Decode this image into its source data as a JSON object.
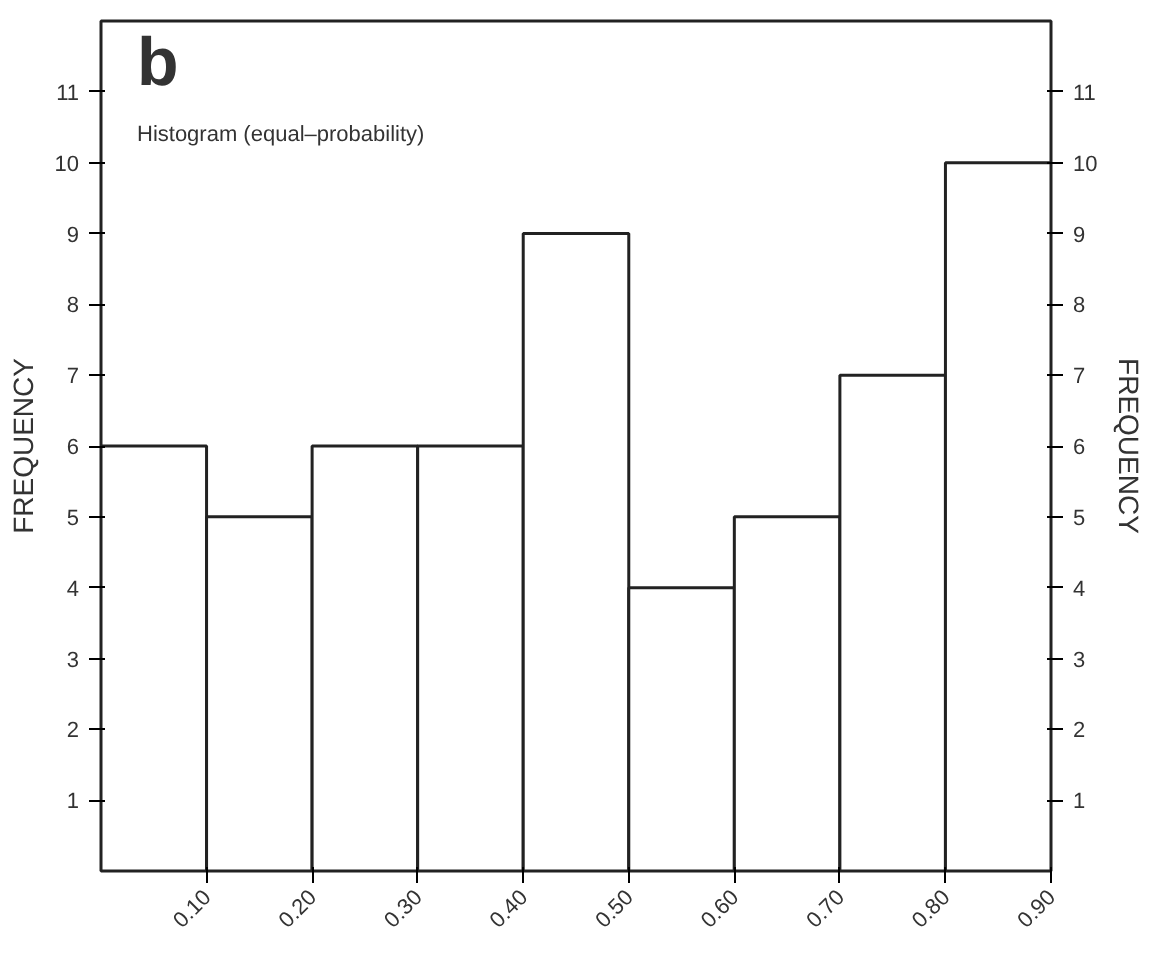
{
  "chart_data": {
    "type": "histogram",
    "title": "b",
    "subtitle": "Histogram (equal–probability)",
    "ylabel": "FREQUENCY",
    "y2label": "FREQUENCY",
    "bins": [
      0.0,
      0.1,
      0.2,
      0.3,
      0.4,
      0.5,
      0.6,
      0.7,
      0.8,
      0.9
    ],
    "values": [
      6,
      5,
      6,
      6,
      9,
      4,
      5,
      7,
      10
    ],
    "color": "#ffffff",
    "xlim": [
      0.0,
      0.9
    ],
    "xticks": [
      {
        "value": 0.1,
        "label": "0.10"
      },
      {
        "value": 0.2,
        "label": "0.20"
      },
      {
        "value": 0.3,
        "label": "0.30"
      },
      {
        "value": 0.4,
        "label": "0.40"
      },
      {
        "value": 0.5,
        "label": "0.50"
      },
      {
        "value": 0.6,
        "label": "0.60"
      },
      {
        "value": 0.7,
        "label": "0.70"
      },
      {
        "value": 0.8,
        "label": "0.80"
      },
      {
        "value": 0.9,
        "label": "0.90"
      }
    ],
    "ylim": [
      0,
      12
    ],
    "yticks": [
      1,
      2,
      3,
      4,
      5,
      6,
      7,
      8,
      9,
      10,
      11
    ],
    "y2lim": [
      0,
      12
    ],
    "y2ticks": [
      1,
      2,
      3,
      4,
      5,
      6,
      7,
      8,
      9,
      10,
      11
    ],
    "grid": false
  }
}
